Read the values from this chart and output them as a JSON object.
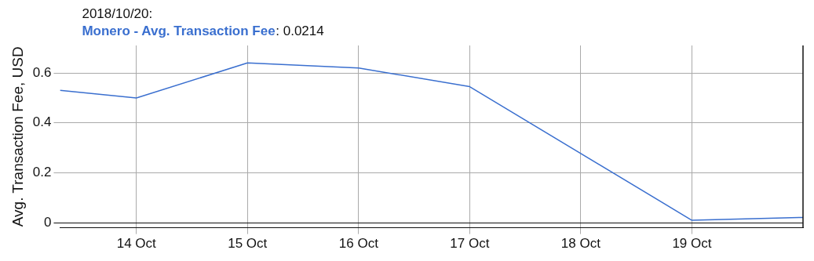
{
  "chart_data": {
    "type": "line",
    "ylabel": "Avg. Transaction Fee, USD",
    "x": [
      "2018-10-13T07:30",
      "2018-10-14",
      "2018-10-15",
      "2018-10-16",
      "2018-10-17",
      "2018-10-19",
      "2018-10-20"
    ],
    "series": [
      {
        "name": "Monero - Avg. Transaction Fee",
        "color": "#3a6fcf",
        "values": [
          0.53,
          0.5,
          0.64,
          0.62,
          0.545,
          0.01,
          0.0214
        ]
      }
    ],
    "xlim": [
      "2018-10-13T07:30",
      "2018-10-20"
    ],
    "xticks": [
      {
        "value": "2018-10-14",
        "label": "14 Oct"
      },
      {
        "value": "2018-10-15",
        "label": "15 Oct"
      },
      {
        "value": "2018-10-16",
        "label": "16 Oct"
      },
      {
        "value": "2018-10-17",
        "label": "17 Oct"
      },
      {
        "value": "2018-10-18",
        "label": "18 Oct"
      },
      {
        "value": "2018-10-19",
        "label": "19 Oct"
      }
    ],
    "ylim": [
      -0.02,
      0.71
    ],
    "yticks": [
      0,
      0.2,
      0.4,
      0.6
    ],
    "grid": true,
    "legend": false,
    "marker": "none",
    "line_style": "solid",
    "annotations": [
      "2018/10/20:",
      ": 0.0214"
    ]
  }
}
